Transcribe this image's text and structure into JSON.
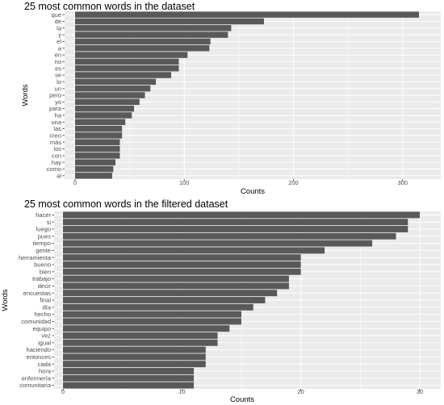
{
  "colors": {
    "panel": "#ebebeb",
    "grid": "#ffffff",
    "bar": "#595959",
    "tick_text": "#4d4d4d"
  },
  "chart_data": [
    {
      "type": "bar",
      "orientation": "horizontal",
      "title": "25 most common words in the dataset",
      "xlabel": "Counts",
      "ylabel": "Words",
      "xlim": [
        0,
        320
      ],
      "xticks": [
        0,
        100,
        200,
        300
      ],
      "grid": true,
      "legend": "none",
      "categories": [
        "que",
        "de",
        "la",
        "y",
        "el",
        "a",
        "en",
        "no",
        "es",
        "se",
        "lo",
        "un",
        "pero",
        "yo",
        "para",
        "ha",
        "una",
        "las",
        "creo",
        "más",
        "los",
        "con",
        "hay",
        "como",
        "al"
      ],
      "values": [
        315,
        173,
        143,
        140,
        124,
        123,
        103,
        95,
        95,
        88,
        74,
        69,
        64,
        59,
        54,
        52,
        46,
        43,
        43,
        41,
        41,
        41,
        37,
        35,
        34
      ]
    },
    {
      "type": "bar",
      "orientation": "horizontal",
      "title": "25 most common words in the filtered dataset",
      "xlabel": "Counts",
      "ylabel": "Words",
      "xlim": [
        0,
        30.5
      ],
      "xticks": [
        0,
        10,
        20,
        30
      ],
      "grid": true,
      "legend": "none",
      "categories": [
        "hacer",
        "si",
        "luego",
        "pues",
        "tiempo",
        "gente",
        "herramienta",
        "bueno",
        "bien",
        "trabajo",
        "decir",
        "encuestas",
        "final",
        "día",
        "hecho",
        "comunidad",
        "equipo",
        "vez",
        "igual",
        "haciendo",
        "entonces",
        "cada",
        "hora",
        "enfermería",
        "comunitaria"
      ],
      "values": [
        30,
        29,
        29,
        28,
        26,
        22,
        20,
        20,
        20,
        19,
        19,
        18,
        17,
        16,
        15,
        15,
        14,
        13,
        13,
        12,
        12,
        12,
        11,
        11,
        11
      ]
    }
  ]
}
